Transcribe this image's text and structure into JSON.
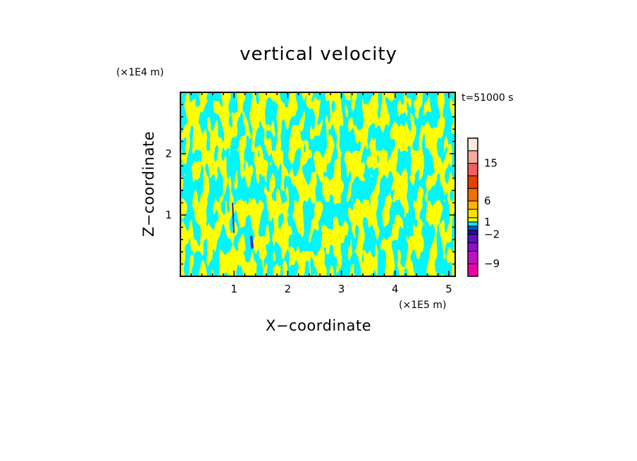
{
  "chart_data": {
    "type": "heatmap",
    "title": "vertical velocity",
    "xlabel": "X−coordinate",
    "ylabel": "Z−coordinate",
    "x_unit": "(×1E5 m)",
    "y_unit": "(×1E4 m)",
    "time_label": "t=51000 s",
    "xlim": [
      0,
      5.12
    ],
    "ylim": [
      0,
      3.0
    ],
    "x_ticks": [
      1,
      2,
      3,
      4,
      5
    ],
    "x_tick_labels": [
      "1",
      "2",
      "3",
      "4",
      "5"
    ],
    "y_ticks": [
      1,
      2
    ],
    "y_tick_labels": [
      "1",
      "2"
    ],
    "field_colors": {
      "positive": "#ffff00",
      "negative": "#00e8f8",
      "strong_negative": "#3020c0"
    },
    "colorbar": {
      "levels_bottom_to_top": [
        -12,
        -9,
        -6,
        -4,
        -2,
        -1,
        0,
        1,
        2,
        4,
        6,
        9,
        12,
        15,
        18,
        21
      ],
      "colors_bottom_to_top": [
        "#f000a8",
        "#c010c0",
        "#9010c8",
        "#6010c0",
        "#2010b0",
        "#0050d8",
        "#00e8f8",
        "#ffff00",
        "#ffe000",
        "#ffb400",
        "#f07000",
        "#e84000",
        "#f06060",
        "#f4a8a0",
        "#fce8e0"
      ],
      "tick_values": [
        15,
        6,
        1,
        -2,
        -9
      ],
      "tick_labels": [
        "15",
        "6",
        "1",
        "−2",
        "−9"
      ]
    }
  }
}
